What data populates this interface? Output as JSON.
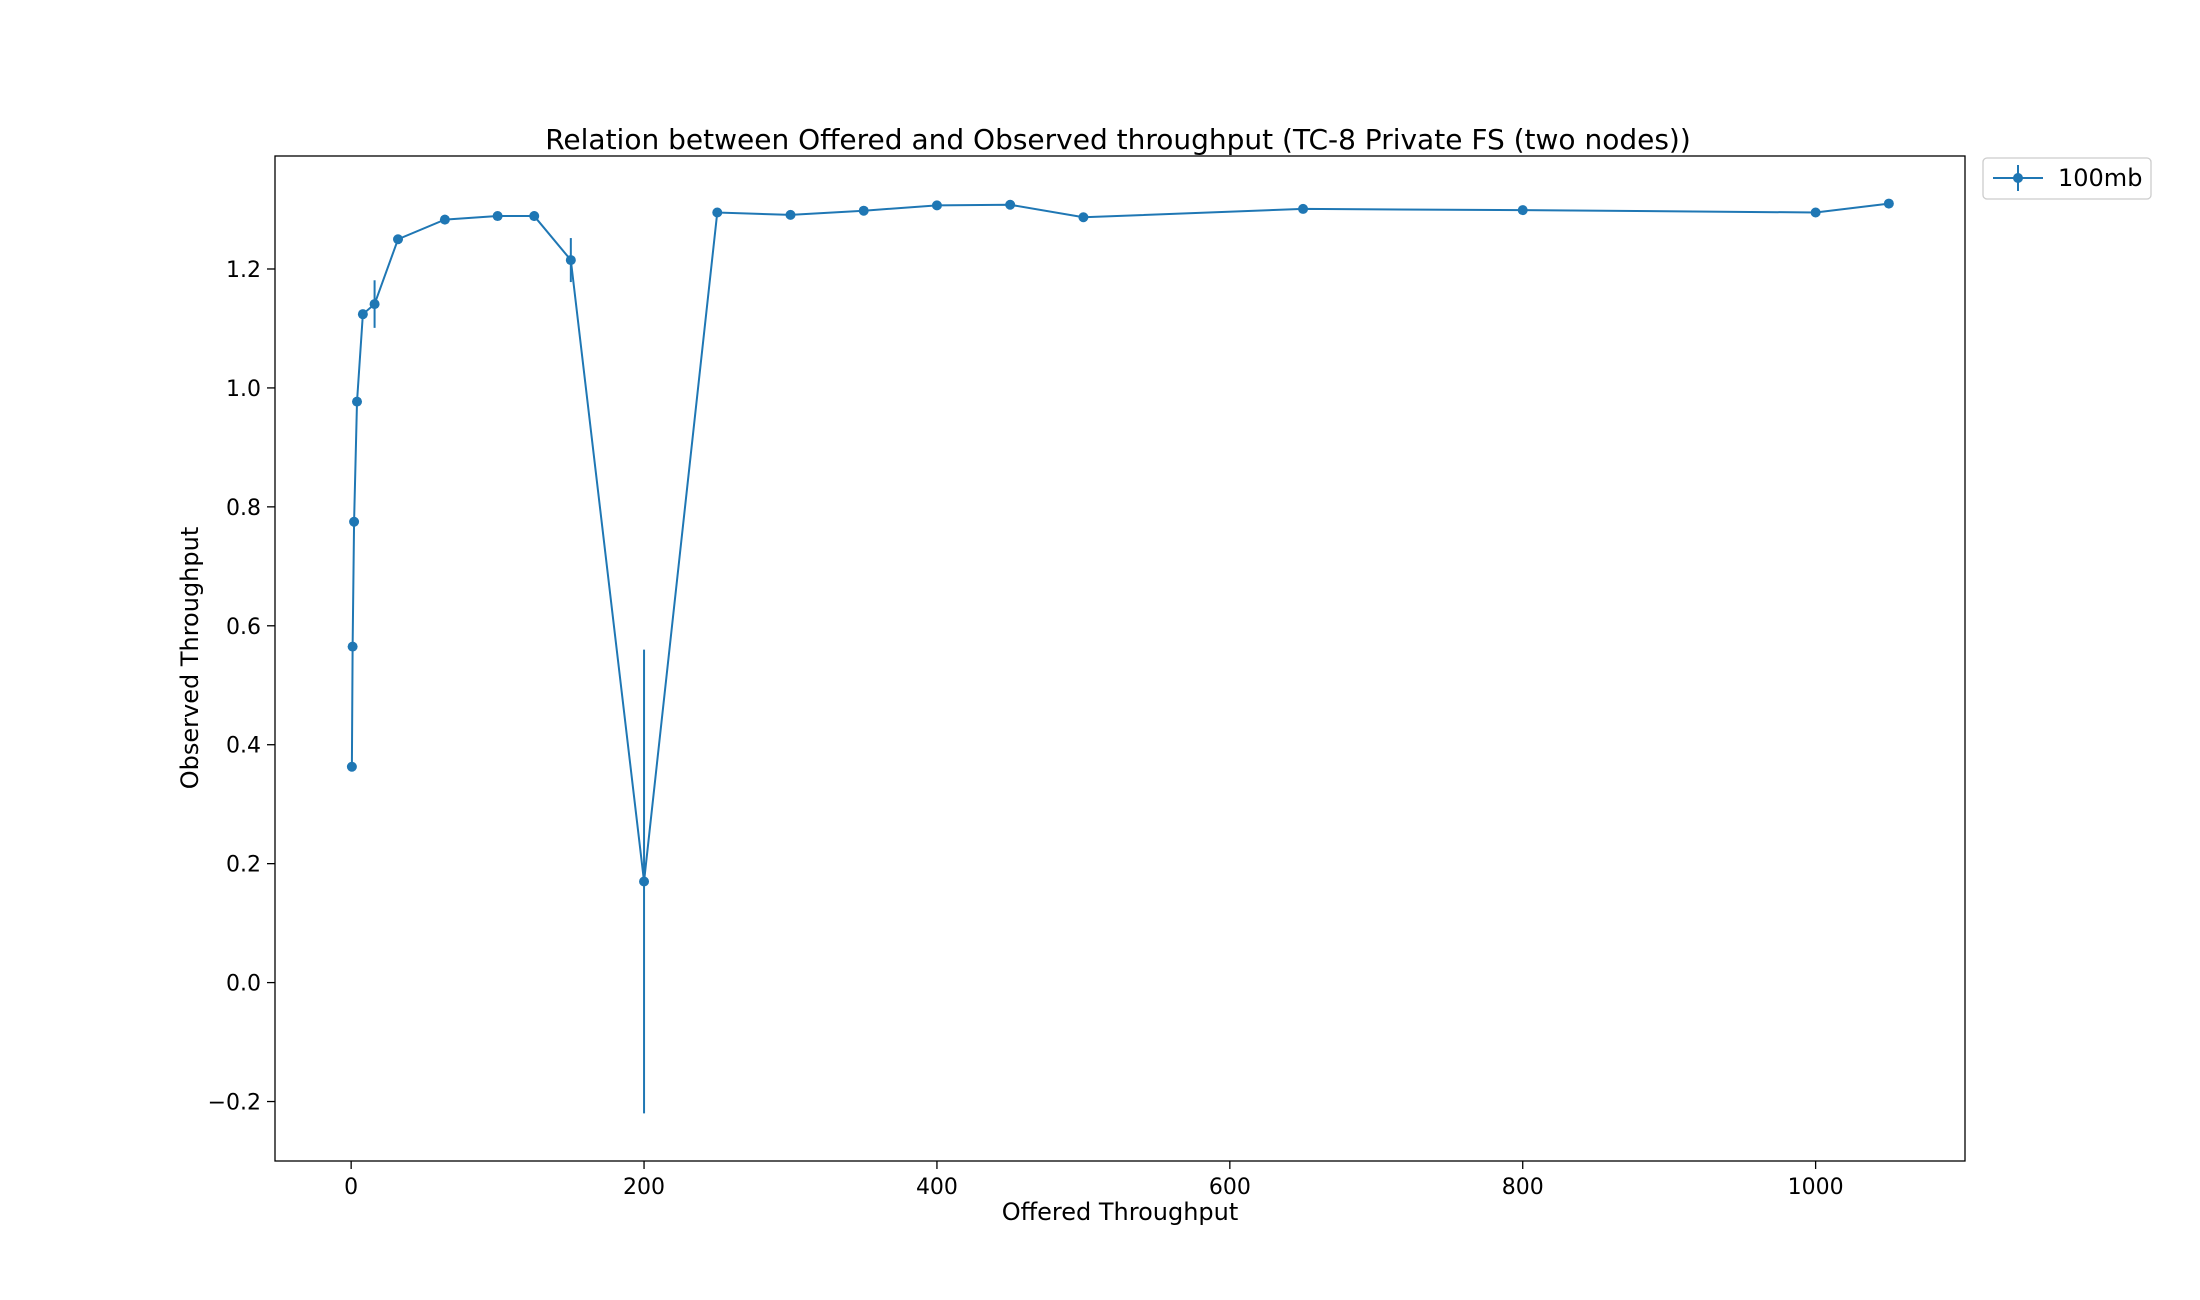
{
  "chart_data": {
    "type": "line",
    "title": "Relation between Offered and Observed throughput (TC-8  Private FS (two nodes))",
    "xlabel": "Offered Throughput",
    "ylabel": "Observed Throughput",
    "xlim": [
      -52,
      1102
    ],
    "ylim": [
      -0.3,
      1.39
    ],
    "xticks": [
      0,
      200,
      400,
      600,
      800,
      1000
    ],
    "yticks": [
      -0.2,
      0.0,
      0.2,
      0.4,
      0.6,
      0.8,
      1.0,
      1.2
    ],
    "xtick_labels": [
      "0",
      "200",
      "400",
      "600",
      "800",
      "1000"
    ],
    "ytick_labels": [
      "−0.2",
      "0.0",
      "0.2",
      "0.4",
      "0.6",
      "0.8",
      "1.0",
      "1.2"
    ],
    "grid": false,
    "legend_position": "outside top-right",
    "series": [
      {
        "name": "100mb",
        "color": "#1f77b4",
        "x": [
          0.5,
          1,
          2,
          4,
          8,
          16,
          32,
          64,
          100,
          125,
          150,
          200,
          250,
          300,
          350,
          400,
          450,
          500,
          650,
          800,
          1000,
          1050
        ],
        "y": [
          0.363,
          0.565,
          0.775,
          0.977,
          1.124,
          1.141,
          1.25,
          1.283,
          1.289,
          1.289,
          1.215,
          0.17,
          1.295,
          1.291,
          1.298,
          1.307,
          1.308,
          1.287,
          1.301,
          1.299,
          1.295,
          1.31
        ],
        "yerr": [
          0.003,
          0.003,
          0.005,
          0.004,
          0.004,
          0.04,
          0.004,
          0.008,
          0.004,
          0.008,
          0.037,
          0.39,
          0.003,
          0.007,
          0.003,
          0.007,
          0.007,
          0.005,
          0.004,
          0.003,
          0.003,
          0.004
        ]
      }
    ]
  }
}
